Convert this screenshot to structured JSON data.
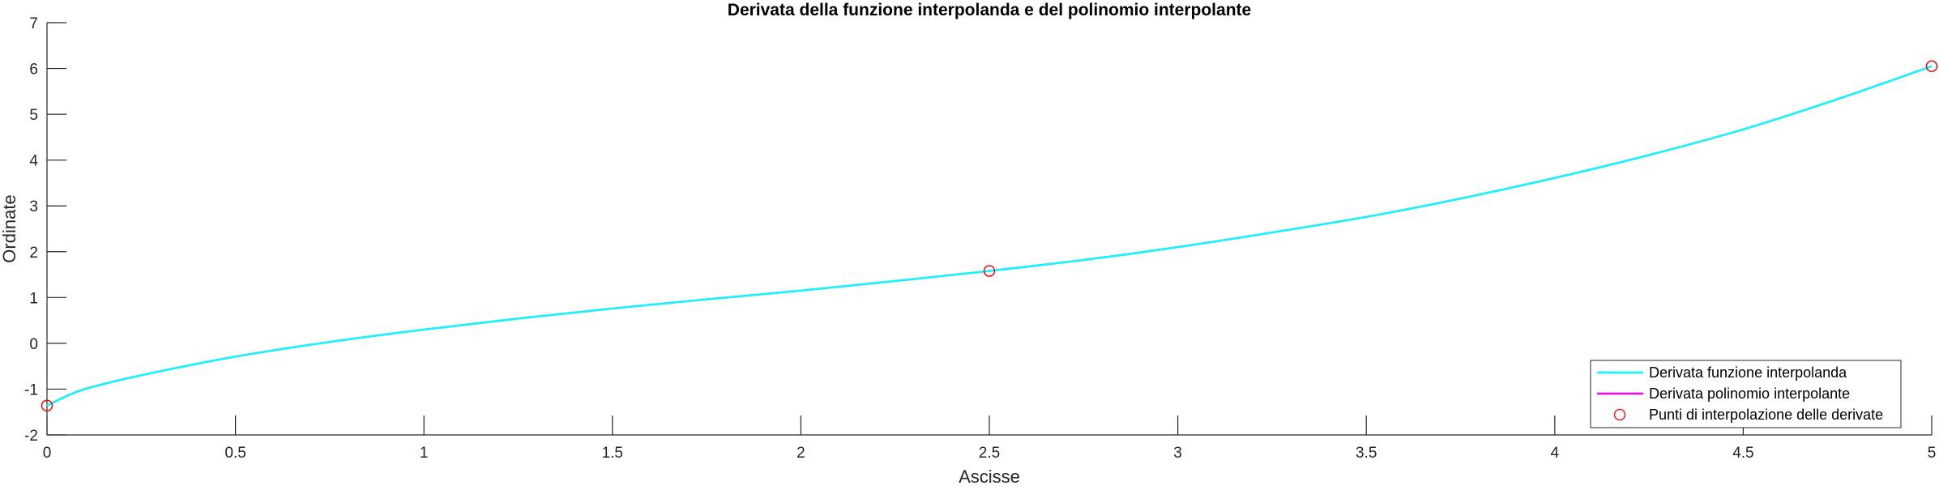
{
  "chart_data": {
    "type": "line",
    "title": "Derivata della funzione interpolanda e del polinomio interpolante",
    "xlabel": "Ascisse",
    "ylabel": "Ordinate",
    "xlim": [
      0,
      5
    ],
    "ylim": [
      -2,
      7
    ],
    "xticks": [
      0,
      0.5,
      1,
      1.5,
      2,
      2.5,
      3,
      3.5,
      4,
      4.5,
      5
    ],
    "xtick_labels": [
      "0",
      "0.5",
      "1",
      "1.5",
      "2",
      "2.5",
      "3",
      "3.5",
      "4",
      "4.5",
      "5"
    ],
    "yticks": [
      -2,
      -1,
      0,
      1,
      2,
      3,
      4,
      5,
      6,
      7
    ],
    "ytick_labels": [
      "-2",
      "-1",
      "0",
      "1",
      "2",
      "3",
      "4",
      "5",
      "6",
      "7"
    ],
    "grid": false,
    "legend_position": "bottom-right",
    "series": [
      {
        "name": "Derivata funzione interpolanda",
        "style": "line",
        "color": "#00FFFF",
        "x": [
          0,
          0.05,
          0.1,
          0.2,
          0.3,
          0.5,
          0.75,
          1.0,
          1.25,
          1.5,
          1.75,
          2.0,
          2.25,
          2.5,
          2.75,
          3.0,
          3.25,
          3.5,
          3.75,
          4.0,
          4.25,
          4.5,
          4.75,
          5.0
        ],
        "y": [
          -1.36,
          -1.16,
          -1.0,
          -0.79,
          -0.61,
          -0.29,
          0.03,
          0.3,
          0.54,
          0.76,
          0.96,
          1.15,
          1.36,
          1.58,
          1.82,
          2.1,
          2.42,
          2.76,
          3.16,
          3.61,
          4.11,
          4.67,
          5.33,
          6.05
        ]
      },
      {
        "name": "Derivata polinomio interpolante",
        "style": "line",
        "color": "#FF00FF",
        "x": [
          0,
          0.05,
          0.1,
          0.2,
          0.3,
          0.5,
          0.75,
          1.0,
          1.25,
          1.5,
          1.75,
          2.0,
          2.25,
          2.5,
          2.75,
          3.0,
          3.25,
          3.5,
          3.75,
          4.0,
          4.25,
          4.5,
          4.75,
          5.0
        ],
        "y": [
          -1.36,
          -1.16,
          -1.0,
          -0.79,
          -0.61,
          -0.29,
          0.03,
          0.3,
          0.54,
          0.76,
          0.96,
          1.15,
          1.36,
          1.58,
          1.82,
          2.1,
          2.42,
          2.76,
          3.16,
          3.61,
          4.11,
          4.67,
          5.33,
          6.05
        ]
      },
      {
        "name": "Punti di interpolazione delle derivate",
        "style": "markers",
        "marker": "circle",
        "color": "#FF0000",
        "x": [
          0,
          2.5,
          5
        ],
        "y": [
          -1.36,
          1.58,
          6.05
        ]
      }
    ]
  }
}
